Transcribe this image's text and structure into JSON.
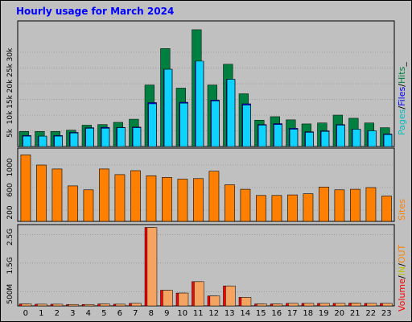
{
  "title": "Hourly usage for March 2024",
  "colors": {
    "pages": "#00c0c0",
    "files": "#0000ff",
    "hits": "#008040",
    "hits_fill": "#0fd3ff",
    "sites": "#ff8000",
    "volume": "#ff0000",
    "in": "#c0c000",
    "out": "#ff8000",
    "vol_fill": "#f4a460"
  },
  "chart_data": [
    {
      "type": "bar",
      "name": "hits-files-pages",
      "categories": [
        "0",
        "1",
        "2",
        "3",
        "4",
        "5",
        "6",
        "7",
        "8",
        "9",
        "10",
        "11",
        "12",
        "13",
        "14",
        "15",
        "16",
        "17",
        "18",
        "19",
        "20",
        "21",
        "22",
        "23"
      ],
      "series": [
        {
          "name": "Hits",
          "values": [
            4800,
            4800,
            4800,
            5200,
            6800,
            7000,
            7700,
            8700,
            19600,
            31200,
            18600,
            37200,
            19600,
            26200,
            16800,
            8400,
            9500,
            8500,
            7200,
            7500,
            10000,
            9000,
            7500,
            6000
          ]
        },
        {
          "name": "Files",
          "values": [
            3500,
            3300,
            3500,
            4500,
            6000,
            6100,
            6100,
            6200,
            14000,
            24600,
            14100,
            27100,
            14800,
            21400,
            13600,
            7000,
            7300,
            5800,
            4700,
            5000,
            7000,
            5500,
            5000,
            4000
          ]
        },
        {
          "name": "Pages",
          "values": [
            3300,
            3300,
            3300,
            4300,
            5800,
            5800,
            6000,
            6000,
            13600,
            24600,
            13800,
            27200,
            14500,
            21400,
            13200,
            6800,
            7000,
            5500,
            4500,
            4800,
            6800,
            5500,
            5000,
            3800
          ]
        }
      ],
      "yticks": [
        "5k",
        "10k",
        "15k",
        "20k",
        "25k",
        "30k"
      ],
      "ylim": [
        0,
        40000
      ],
      "legend": {
        "pages": "Pages",
        "files": "Files",
        "hits": "Hits",
        "sep": "/",
        "sep_end": "_"
      }
    },
    {
      "type": "bar",
      "name": "sites",
      "categories": [
        "0",
        "1",
        "2",
        "3",
        "4",
        "5",
        "6",
        "7",
        "8",
        "9",
        "10",
        "11",
        "12",
        "13",
        "14",
        "15",
        "16",
        "17",
        "18",
        "19",
        "20",
        "21",
        "22",
        "23"
      ],
      "series": [
        {
          "name": "Sites",
          "values": [
            1180,
            1000,
            930,
            630,
            560,
            930,
            830,
            900,
            810,
            780,
            750,
            760,
            890,
            650,
            570,
            460,
            460,
            470,
            490,
            610,
            560,
            570,
            600,
            450
          ]
        }
      ],
      "yticks": [
        "200",
        "600",
        "1000"
      ],
      "ylim": [
        0,
        1300
      ],
      "legend": {
        "sites": "Sites"
      }
    },
    {
      "type": "bar",
      "name": "volume",
      "categories": [
        "0",
        "1",
        "2",
        "3",
        "4",
        "5",
        "6",
        "7",
        "8",
        "9",
        "10",
        "11",
        "12",
        "13",
        "14",
        "15",
        "16",
        "17",
        "18",
        "19",
        "20",
        "21",
        "22",
        "23"
      ],
      "series": [
        {
          "name": "Volume",
          "values": [
            0.07,
            0.06,
            0.06,
            0.05,
            0.05,
            0.07,
            0.06,
            0.09,
            2.75,
            0.55,
            0.45,
            0.85,
            0.35,
            0.7,
            0.3,
            0.07,
            0.07,
            0.09,
            0.09,
            0.09,
            0.09,
            0.1,
            0.09,
            0.09
          ]
        }
      ],
      "yticks": [
        "500M",
        "1.5G",
        "2.5G"
      ],
      "ylim": [
        0,
        2.85
      ],
      "legend": {
        "volume": "Volume",
        "in": "IN",
        "out": "OUT",
        "sep": "/"
      }
    }
  ]
}
